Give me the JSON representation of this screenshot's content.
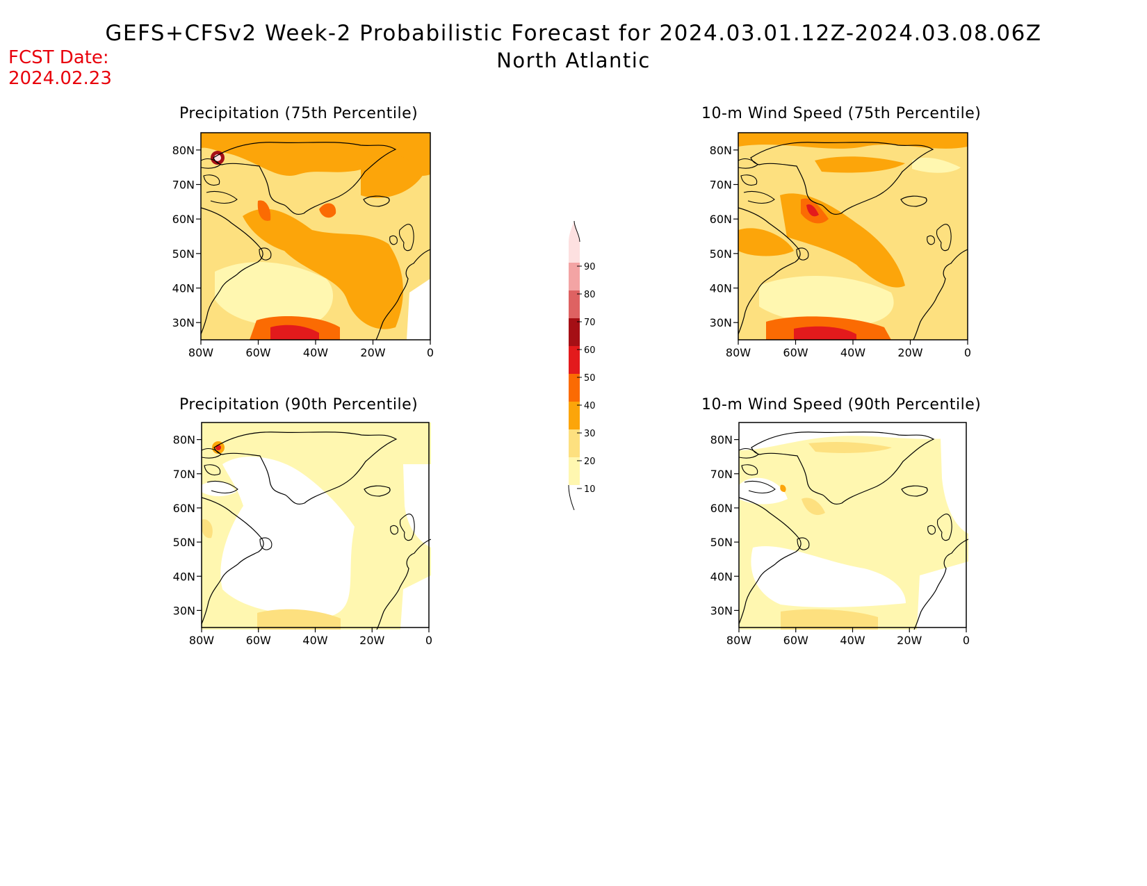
{
  "header": {
    "title": "GEFS+CFSv2 Week-2 Probabilistic Forecast for 2024.03.01.12Z-2024.03.08.06Z",
    "region": "North Atlantic"
  },
  "forecast_date": {
    "label": "FCST Date:",
    "value": "2024.02.23"
  },
  "panels": [
    {
      "title": "Precipitation (75th Percentile)"
    },
    {
      "title": "10-m Wind Speed (75th Percentile)"
    },
    {
      "title": "Precipitation (90th Percentile)"
    },
    {
      "title": "10-m Wind Speed (90th Percentile)"
    }
  ],
  "axes": {
    "lat_ticks": [
      "80N",
      "70N",
      "60N",
      "50N",
      "40N",
      "30N"
    ],
    "lon_ticks": [
      "80W",
      "60W",
      "40W",
      "20W",
      "0"
    ]
  },
  "colorbar": {
    "levels": [
      "10",
      "20",
      "30",
      "40",
      "50",
      "60",
      "70",
      "80",
      "90"
    ],
    "colors": [
      "#fff7b0",
      "#fde07f",
      "#fca50a",
      "#fb6b03",
      "#e31a1c",
      "#a50f15",
      "#de6262",
      "#f3a4a4",
      "#fde0e0"
    ]
  }
}
